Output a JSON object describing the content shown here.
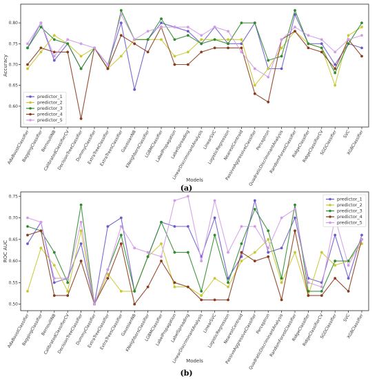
{
  "categories": [
    "AdaBoostClassifier",
    "BaggingClassifier",
    "BernoulliNB",
    "CalibratedClassifierCV",
    "DecisionTreeClassifier",
    "DummyClassifier",
    "ExtraTreeClassifier",
    "ExtraTreesClassifier",
    "GaussianNB",
    "KNeighborsClassifier",
    "LGBMClassifier",
    "LabelPropagation",
    "LabelSpreading",
    "LinearDiscriminantAnalysis",
    "LinearSVC",
    "LogisticRegression",
    "NearestCentroid",
    "PassiveAggressiveClassifier",
    "Perceptron",
    "QuadraticDiscriminantAnalysis",
    "RandomForestClassifier",
    "RidgeClassifier",
    "RidgeClassifierCV",
    "SGDClassifier",
    "SVC",
    "XGBClassifier"
  ],
  "colors": [
    "#6a5acd",
    "#c8c832",
    "#2e8b2e",
    "#8b3a1a",
    "#d29be8"
  ],
  "chart_data": [
    {
      "type": "line",
      "panel": "(a)",
      "xlabel": "Models",
      "ylabel": "Accuracy",
      "ylim": [
        0.55,
        0.845
      ],
      "yticks": [
        0.6,
        0.65,
        0.7,
        0.75,
        0.8
      ],
      "ytick_labels": [
        "0.60",
        "0.65",
        "0.70",
        "0.75",
        "0.80"
      ],
      "legend_position": "lower-left",
      "series": [
        {
          "name": "predictor_1",
          "values": [
            0.74,
            0.8,
            0.71,
            0.75,
            0.69,
            0.74,
            0.7,
            0.8,
            0.64,
            0.76,
            0.8,
            0.79,
            0.78,
            0.75,
            0.79,
            0.75,
            0.75,
            0.8,
            0.69,
            0.69,
            0.82,
            0.75,
            0.75,
            0.7,
            0.75,
            0.74
          ]
        },
        {
          "name": "predictor_2",
          "values": [
            0.69,
            0.73,
            0.77,
            0.75,
            0.72,
            0.74,
            0.69,
            0.72,
            0.76,
            0.76,
            0.76,
            0.72,
            0.73,
            0.76,
            0.76,
            0.76,
            0.76,
            0.65,
            0.69,
            0.74,
            0.78,
            0.75,
            0.74,
            0.65,
            0.77,
            0.79
          ]
        },
        {
          "name": "predictor_3",
          "values": [
            0.74,
            0.79,
            0.76,
            0.75,
            0.69,
            0.74,
            0.69,
            0.83,
            0.76,
            0.76,
            0.81,
            0.76,
            0.77,
            0.75,
            0.76,
            0.75,
            0.8,
            0.8,
            0.71,
            0.72,
            0.83,
            0.75,
            0.74,
            0.68,
            0.75,
            0.8
          ]
        },
        {
          "name": "predictor_4",
          "values": [
            0.7,
            0.74,
            0.73,
            0.73,
            0.57,
            0.74,
            0.69,
            0.77,
            0.75,
            0.73,
            0.79,
            0.7,
            0.7,
            0.73,
            0.74,
            0.74,
            0.74,
            0.63,
            0.61,
            0.76,
            0.78,
            0.74,
            0.73,
            0.69,
            0.76,
            0.72
          ]
        },
        {
          "name": "predictor_5",
          "values": [
            0.75,
            0.8,
            0.72,
            0.76,
            0.75,
            0.74,
            0.7,
            0.82,
            0.76,
            0.78,
            0.79,
            0.79,
            0.79,
            0.77,
            0.79,
            0.78,
            0.73,
            0.69,
            0.67,
            0.76,
            0.79,
            0.77,
            0.76,
            0.73,
            0.76,
            0.77
          ]
        }
      ]
    },
    {
      "type": "line",
      "panel": "(b)",
      "xlabel": "Models",
      "ylabel": "ROC AUC",
      "ylim": [
        0.485,
        0.76
      ],
      "yticks": [
        0.5,
        0.55,
        0.6,
        0.65,
        0.7,
        0.75
      ],
      "ytick_labels": [
        "0.50",
        "0.55",
        "0.60",
        "0.65",
        "0.70",
        "0.75"
      ],
      "legend_position": "top-right",
      "series": [
        {
          "name": "predictor_1",
          "values": [
            0.64,
            0.69,
            0.55,
            0.56,
            0.64,
            0.5,
            0.68,
            0.7,
            0.53,
            0.61,
            0.69,
            0.68,
            0.68,
            0.61,
            0.7,
            0.56,
            0.61,
            0.74,
            0.62,
            0.63,
            0.7,
            0.56,
            0.55,
            0.66,
            0.56,
            0.66
          ]
        },
        {
          "name": "predictor_2",
          "values": [
            0.53,
            0.63,
            0.59,
            0.53,
            0.67,
            0.5,
            0.57,
            0.53,
            0.53,
            0.61,
            0.64,
            0.54,
            0.54,
            0.52,
            0.56,
            0.54,
            0.6,
            0.62,
            0.65,
            0.55,
            0.62,
            0.52,
            0.62,
            0.59,
            0.6,
            0.64
          ]
        },
        {
          "name": "predictor_3",
          "values": [
            0.68,
            0.67,
            0.62,
            0.55,
            0.73,
            0.5,
            0.58,
            0.66,
            0.53,
            0.61,
            0.69,
            0.62,
            0.62,
            0.53,
            0.66,
            0.55,
            0.64,
            0.72,
            0.67,
            0.56,
            0.73,
            0.53,
            0.53,
            0.6,
            0.6,
            0.65
          ]
        },
        {
          "name": "predictor_4",
          "values": [
            0.66,
            0.67,
            0.52,
            0.52,
            0.6,
            0.5,
            0.56,
            0.64,
            0.5,
            0.54,
            0.6,
            0.55,
            0.54,
            0.51,
            0.51,
            0.51,
            0.62,
            0.6,
            0.61,
            0.51,
            0.67,
            0.52,
            0.52,
            0.56,
            0.53,
            0.65
          ]
        },
        {
          "name": "predictor_5",
          "values": [
            0.7,
            0.69,
            0.56,
            0.56,
            0.69,
            0.5,
            0.58,
            0.68,
            0.63,
            0.62,
            0.61,
            0.74,
            0.75,
            0.6,
            0.74,
            0.62,
            0.68,
            0.68,
            0.63,
            0.7,
            0.72,
            0.55,
            0.54,
            0.7,
            0.59,
            0.65
          ]
        }
      ]
    }
  ]
}
